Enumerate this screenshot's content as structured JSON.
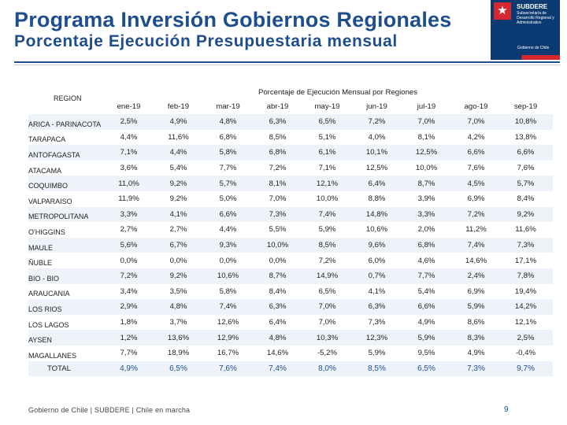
{
  "header": {
    "title": "Programa Inversión Gobiernos Regionales",
    "subtitle": "Porcentaje Ejecución Presupuestaria mensual"
  },
  "logo": {
    "brand": "SUBDERE",
    "subline": "Subsecretaría de Desarrollo Regional y Administrativo",
    "government": "Gobierno de Chile",
    "star_icon": "star-icon",
    "colors": {
      "blue": "#0b3a73",
      "red": "#d5282f"
    }
  },
  "table": {
    "region_header": "REGION",
    "group_header": "Porcentaje de Ejecución Mensual por Regiones",
    "months": [
      "ene-19",
      "feb-19",
      "mar-19",
      "abr-19",
      "may-19",
      "jun-19",
      "jul-19",
      "ago-19",
      "sep-19"
    ],
    "rows": [
      {
        "region": "ARICA - PARINACOTA",
        "values": [
          "2,5%",
          "4,9%",
          "4,8%",
          "6,3%",
          "6,5%",
          "7,2%",
          "7,0%",
          "7,0%",
          "10,8%"
        ]
      },
      {
        "region": "TARAPACA",
        "values": [
          "4,4%",
          "11,6%",
          "6,8%",
          "8,5%",
          "5,1%",
          "4,0%",
          "8,1%",
          "4,2%",
          "13,8%"
        ]
      },
      {
        "region": "ANTOFAGASTA",
        "values": [
          "7,1%",
          "4,4%",
          "5,8%",
          "6,8%",
          "6,1%",
          "10,1%",
          "12,5%",
          "6,6%",
          "6,6%"
        ]
      },
      {
        "region": "ATACAMA",
        "values": [
          "3,6%",
          "5,4%",
          "7,7%",
          "7,2%",
          "7,1%",
          "12,5%",
          "10,0%",
          "7,6%",
          "7,6%"
        ]
      },
      {
        "region": "COQUIMBO",
        "values": [
          "11,0%",
          "9,2%",
          "5,7%",
          "8,1%",
          "12,1%",
          "6,4%",
          "8,7%",
          "4,5%",
          "5,7%"
        ]
      },
      {
        "region": "VALPARAISO",
        "values": [
          "11,9%",
          "9,2%",
          "5,0%",
          "7,0%",
          "10,0%",
          "8,8%",
          "3,9%",
          "6,9%",
          "8,4%"
        ]
      },
      {
        "region": "METROPOLITANA",
        "values": [
          "3,3%",
          "4,1%",
          "6,6%",
          "7,3%",
          "7,4%",
          "14,8%",
          "3,3%",
          "7,2%",
          "9,2%"
        ]
      },
      {
        "region": "O'HIGGINS",
        "values": [
          "2,7%",
          "2,7%",
          "4,4%",
          "5,5%",
          "5,9%",
          "10,6%",
          "2,0%",
          "11,2%",
          "11,6%"
        ]
      },
      {
        "region": "MAULE",
        "values": [
          "5,6%",
          "6,7%",
          "9,3%",
          "10,0%",
          "8,5%",
          "9,6%",
          "6,8%",
          "7,4%",
          "7,3%"
        ]
      },
      {
        "region": "ÑUBLE",
        "values": [
          "0,0%",
          "0,0%",
          "0,0%",
          "0,0%",
          "7,2%",
          "6,0%",
          "4,6%",
          "14,6%",
          "17,1%"
        ]
      },
      {
        "region": "BIO - BIO",
        "values": [
          "7,2%",
          "9,2%",
          "10,6%",
          "8,7%",
          "14,9%",
          "0,7%",
          "7,7%",
          "2,4%",
          "7,8%"
        ]
      },
      {
        "region": "ARAUCANIA",
        "values": [
          "3,4%",
          "3,5%",
          "5,8%",
          "8,4%",
          "6,5%",
          "4,1%",
          "5,4%",
          "6,9%",
          "19,4%"
        ]
      },
      {
        "region": "LOS RIOS",
        "values": [
          "2,9%",
          "4,8%",
          "7,4%",
          "6,3%",
          "7,0%",
          "6,3%",
          "6,6%",
          "5,9%",
          "14,2%"
        ]
      },
      {
        "region": "LOS LAGOS",
        "values": [
          "1,8%",
          "3,7%",
          "12,6%",
          "6,4%",
          "7,0%",
          "7,3%",
          "4,9%",
          "8,6%",
          "12,1%"
        ]
      },
      {
        "region": "AYSEN",
        "values": [
          "1,2%",
          "13,6%",
          "12,9%",
          "4,8%",
          "10,3%",
          "12,3%",
          "5,9%",
          "8,3%",
          "2,5%"
        ]
      },
      {
        "region": "MAGALLANES",
        "values": [
          "7,7%",
          "18,9%",
          "16,7%",
          "14,6%",
          "-5,2%",
          "5,9%",
          "9,5%",
          "4,9%",
          "-0,4%"
        ]
      },
      {
        "region": "TOTAL",
        "values": [
          "4,9%",
          "6,5%",
          "7,6%",
          "7,4%",
          "8,0%",
          "8,5%",
          "6,5%",
          "7,3%",
          "9,7%"
        ],
        "total": true
      }
    ]
  },
  "footer": {
    "text": "Gobierno de Chile | SUBDERE | Chile en marcha",
    "page_number": "9"
  }
}
